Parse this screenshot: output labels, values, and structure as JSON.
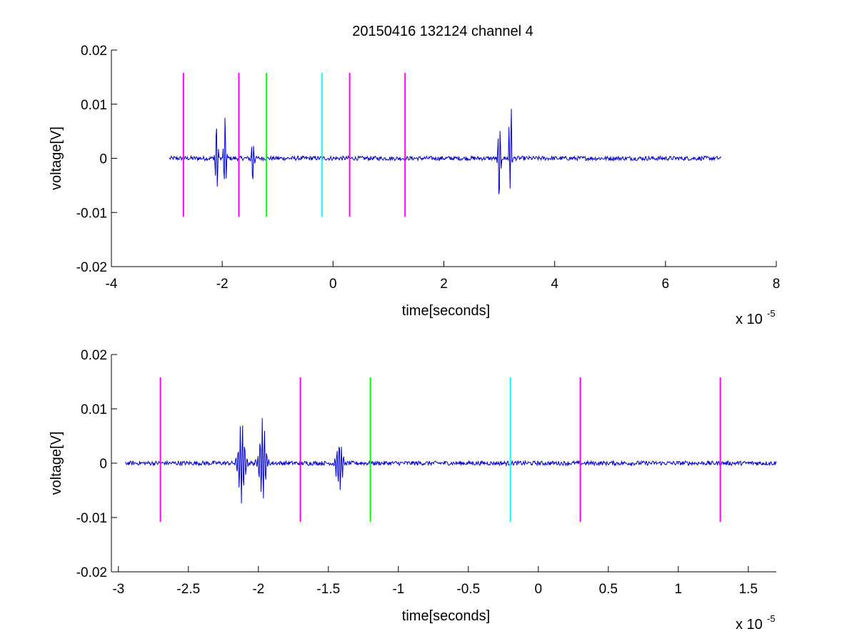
{
  "figure": {
    "title": "20150416 132124 channel 4",
    "background": "#ffffff",
    "signal_color": "#0000cc",
    "marker_colors": {
      "magenta": "#ff00ff",
      "green": "#00ff00",
      "cyan": "#00ffff"
    }
  },
  "chart_data": [
    {
      "type": "line",
      "title": "20150416 132124 channel 4",
      "xlabel": "time[seconds]",
      "ylabel": "voltage[V]",
      "x_exponent_label": "x 10",
      "x_exponent": "-5",
      "xlim": [
        -4,
        8
      ],
      "ylim": [
        -0.02,
        0.02
      ],
      "x_ticks": [
        -4,
        -2,
        0,
        2,
        4,
        6,
        8
      ],
      "x_tick_labels": [
        "-4",
        "-2",
        "0",
        "2",
        "4",
        "6",
        "8"
      ],
      "y_ticks": [
        -0.02,
        -0.01,
        0,
        0.01,
        0.02
      ],
      "y_tick_labels": [
        "-0.02",
        "-0.01",
        "0",
        "0.01",
        "0.02"
      ],
      "grid": false,
      "series": [
        {
          "color": "#0000cc",
          "x_range": [
            -2.95,
            7.0
          ],
          "baseline": 0,
          "noise_amplitude": 0.0004,
          "bursts": [
            {
              "x": -2.1,
              "peak_pos": 0.008,
              "peak_neg": -0.0075
            },
            {
              "x": -1.95,
              "peak_pos": 0.0085,
              "peak_neg": -0.007
            },
            {
              "x": -1.45,
              "peak_pos": 0.004,
              "peak_neg": -0.0055
            },
            {
              "x": 3.0,
              "peak_pos": 0.007,
              "peak_neg": -0.0098
            },
            {
              "x": 3.2,
              "peak_pos": 0.0143,
              "peak_neg": -0.0055
            }
          ]
        }
      ],
      "vertical_markers": [
        {
          "x": -2.7,
          "y_range": [
            -0.0108,
            0.0158
          ],
          "color": "#ff00ff"
        },
        {
          "x": -1.7,
          "y_range": [
            -0.0108,
            0.0158
          ],
          "color": "#ff00ff"
        },
        {
          "x": -1.2,
          "y_range": [
            -0.0108,
            0.0158
          ],
          "color": "#00ff00"
        },
        {
          "x": -0.2,
          "y_range": [
            -0.0108,
            0.0158
          ],
          "color": "#00ffff"
        },
        {
          "x": 0.3,
          "y_range": [
            -0.0108,
            0.0158
          ],
          "color": "#ff00ff"
        },
        {
          "x": 1.3,
          "y_range": [
            -0.0108,
            0.0158
          ],
          "color": "#ff00ff"
        }
      ]
    },
    {
      "type": "line",
      "title": "",
      "xlabel": "time[seconds]",
      "ylabel": "voltage[V]",
      "x_exponent_label": "x 10",
      "x_exponent": "-5",
      "xlim": [
        -3.05,
        1.7
      ],
      "ylim": [
        -0.02,
        0.02
      ],
      "x_ticks": [
        -3,
        -2.5,
        -2,
        -1.5,
        -1,
        -0.5,
        0,
        0.5,
        1,
        1.5
      ],
      "x_tick_labels": [
        "-3",
        "-2.5",
        "-2",
        "-1.5",
        "-1",
        "-0.5",
        "0",
        "0.5",
        "1",
        "1.5"
      ],
      "y_ticks": [
        -0.02,
        -0.01,
        0,
        0.01,
        0.02
      ],
      "y_tick_labels": [
        "-0.02",
        "-0.01",
        "0",
        "0.01",
        "0.02"
      ],
      "grid": false,
      "series": [
        {
          "color": "#0000cc",
          "x_range": [
            -2.95,
            1.7
          ],
          "baseline": 0,
          "noise_amplitude": 0.0004,
          "bursts": [
            {
              "x": -2.12,
              "peak_pos": 0.0075,
              "peak_neg": -0.0075
            },
            {
              "x": -1.97,
              "peak_pos": 0.0083,
              "peak_neg": -0.007
            },
            {
              "x": -1.42,
              "peak_pos": 0.0043,
              "peak_neg": -0.0055
            }
          ]
        }
      ],
      "vertical_markers": [
        {
          "x": -2.7,
          "y_range": [
            -0.0108,
            0.0158
          ],
          "color": "#ff00ff"
        },
        {
          "x": -1.7,
          "y_range": [
            -0.0108,
            0.0158
          ],
          "color": "#ff00ff"
        },
        {
          "x": -1.2,
          "y_range": [
            -0.0108,
            0.0158
          ],
          "color": "#00ff00"
        },
        {
          "x": -0.2,
          "y_range": [
            -0.0108,
            0.0158
          ],
          "color": "#00ffff"
        },
        {
          "x": 0.3,
          "y_range": [
            -0.0108,
            0.0158
          ],
          "color": "#ff00ff"
        },
        {
          "x": 1.3,
          "y_range": [
            -0.0108,
            0.0158
          ],
          "color": "#ff00ff"
        }
      ]
    }
  ]
}
